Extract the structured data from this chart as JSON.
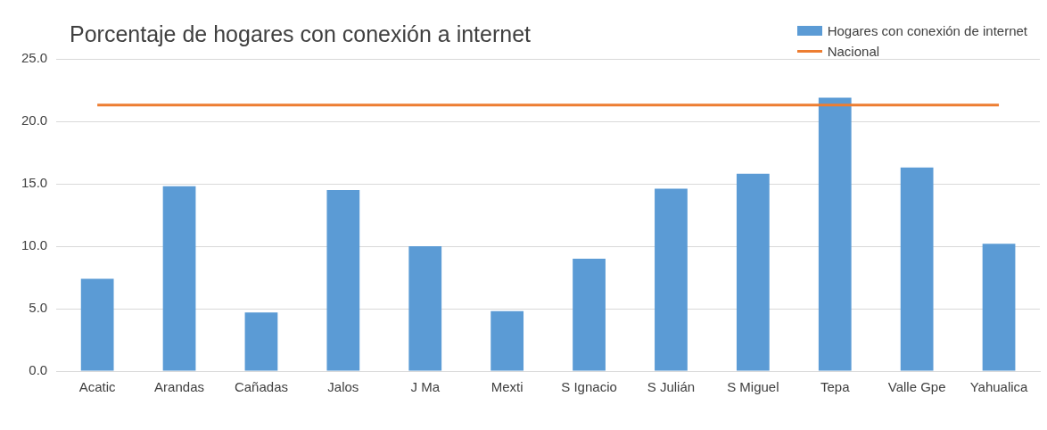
{
  "chart_data": {
    "type": "bar",
    "title": "Porcentaje de hogares con conexión a internet",
    "categories": [
      "Acatic",
      "Arandas",
      "Cañadas",
      "Jalos",
      "J Ma",
      "Mexti",
      "S Ignacio",
      "S Julián",
      "S Miguel",
      "Tepa",
      "Valle Gpe",
      "Yahualica"
    ],
    "series": [
      {
        "name": "Hogares con conexión de internet",
        "color": "#5b9bd5",
        "values": [
          7.4,
          14.8,
          4.7,
          14.5,
          10.0,
          4.8,
          9.0,
          14.6,
          15.8,
          21.9,
          16.3,
          10.2
        ]
      },
      {
        "name": "Nacional",
        "type": "line",
        "color": "#ed7d31",
        "values": [
          21.3,
          21.3,
          21.3,
          21.3,
          21.3,
          21.3,
          21.3,
          21.3,
          21.3,
          21.3,
          21.3,
          21.3
        ]
      }
    ],
    "ylim": [
      0,
      25
    ],
    "yticks": [
      {
        "value": 0,
        "label": "0.0"
      },
      {
        "value": 5,
        "label": "5.0"
      },
      {
        "value": 10,
        "label": "10.0"
      },
      {
        "value": 15,
        "label": "15.0"
      },
      {
        "value": 20,
        "label": "20.0"
      },
      {
        "value": 25,
        "label": "25.0"
      }
    ],
    "grid": "y",
    "legend": "top right",
    "marker": "none"
  }
}
